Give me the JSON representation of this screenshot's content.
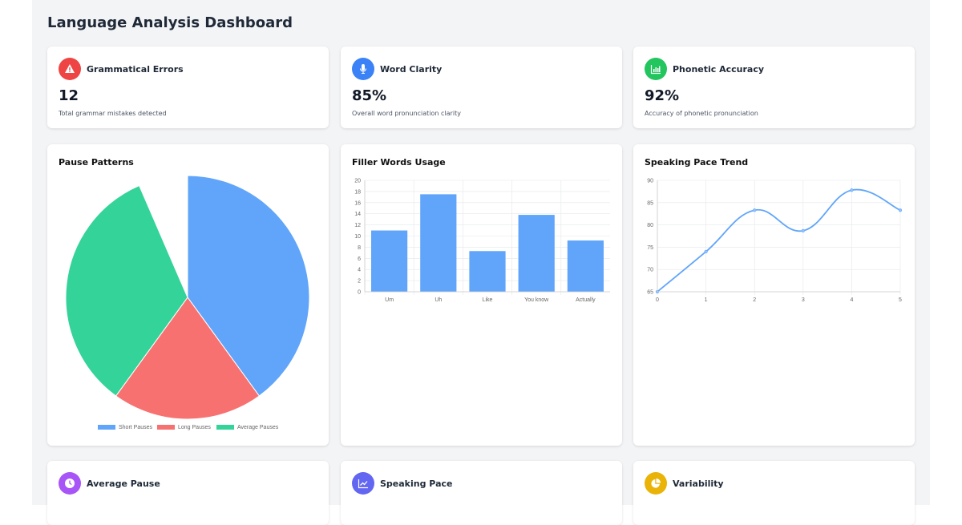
{
  "title": "Language Analysis Dashboard",
  "stats": [
    {
      "title": "Grammatical Errors",
      "value": "12",
      "desc": "Total grammar mistakes detected",
      "icon": "warning-icon",
      "color": "#ef4444"
    },
    {
      "title": "Word Clarity",
      "value": "85%",
      "desc": "Overall word pronunciation clarity",
      "icon": "microphone-icon",
      "color": "#3b82f6"
    },
    {
      "title": "Phonetic Accuracy",
      "value": "92%",
      "desc": "Accuracy of phonetic pronunciation",
      "icon": "bar-chart-icon",
      "color": "#22c55e"
    }
  ],
  "bottom": [
    {
      "title": "Average Pause",
      "icon": "clock-icon",
      "color": "#a855f7"
    },
    {
      "title": "Speaking Pace",
      "icon": "line-chart-icon",
      "color": "#6366f1"
    },
    {
      "title": "Variability",
      "icon": "pie-chart-icon",
      "color": "#eab308"
    }
  ],
  "chart_data": [
    {
      "type": "pie",
      "title": "Pause Patterns",
      "categories": [
        "Short Pauses",
        "Long Pauses",
        "Average Pauses"
      ],
      "values": [
        40,
        20,
        33.5
      ],
      "colors": [
        "#60a5fa",
        "#f87171",
        "#34d399"
      ],
      "legend": "bottom"
    },
    {
      "type": "bar",
      "title": "Filler Words Usage",
      "categories": [
        "Um",
        "Uh",
        "Like",
        "You know",
        "Actually"
      ],
      "values": [
        11,
        17.5,
        7.3,
        13.8,
        9.2
      ],
      "ylim": [
        0,
        20
      ],
      "yticks": [
        0,
        2,
        4,
        6,
        8,
        10,
        12,
        14,
        16,
        18,
        20
      ],
      "color": "#60a5fa",
      "grid": true
    },
    {
      "type": "line",
      "title": "Speaking Pace Trend",
      "x": [
        0,
        1,
        2,
        3,
        4,
        5
      ],
      "values": [
        65,
        74,
        83.3,
        78.7,
        87.8,
        83.3
      ],
      "ylim": [
        65,
        90
      ],
      "yticks": [
        65,
        70,
        75,
        80,
        85,
        90
      ],
      "color": "#60a5fa",
      "grid": true
    }
  ]
}
